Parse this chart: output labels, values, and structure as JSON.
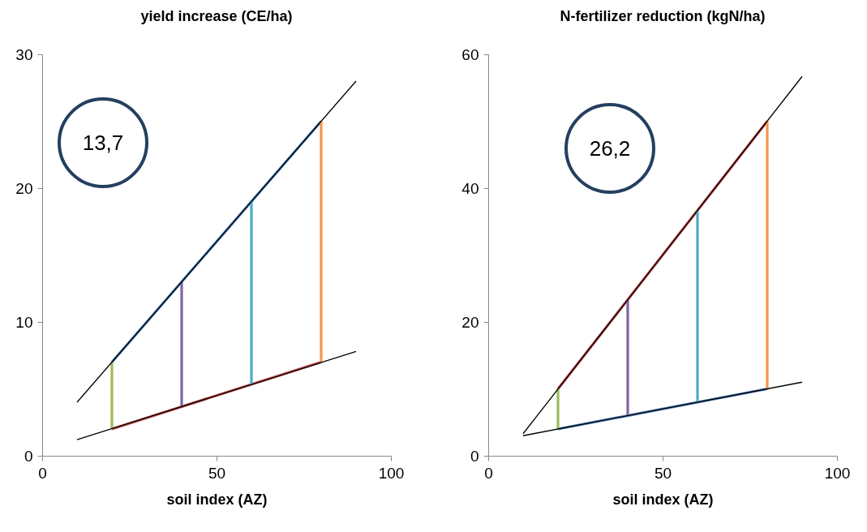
{
  "chart_data": [
    {
      "type": "line",
      "title": "yield increase (CE/ha)",
      "xlabel": "soil index (AZ)",
      "annotations": [
        "13,7"
      ],
      "xlim": [
        0,
        100
      ],
      "xticks": [
        0,
        50,
        100
      ],
      "ylim": [
        0,
        30
      ],
      "yticks": [
        0,
        10,
        20,
        30
      ],
      "grid": false,
      "series": [
        {
          "color": "#4f81bd",
          "x": [
            20,
            80
          ],
          "values": [
            7,
            25
          ]
        },
        {
          "color": "#c0504d",
          "x": [
            20,
            80
          ],
          "values": [
            2,
            7
          ]
        },
        {
          "color": "#9bbb59",
          "x": [
            20,
            20
          ],
          "values": [
            2,
            7
          ]
        },
        {
          "color": "#8064a2",
          "x": [
            40,
            40
          ],
          "values": [
            3.7,
            13
          ]
        },
        {
          "color": "#4bacc6",
          "x": [
            60,
            60
          ],
          "values": [
            5.3,
            19
          ]
        },
        {
          "color": "#f79646",
          "x": [
            80,
            80
          ],
          "values": [
            7,
            25
          ]
        },
        {
          "color": "#000000",
          "x": [
            10,
            90
          ],
          "values": [
            4,
            28
          ]
        },
        {
          "color": "#000000",
          "x": [
            10,
            90
          ],
          "values": [
            1.2,
            7.8
          ]
        }
      ]
    },
    {
      "type": "line",
      "title": "N-fertilizer reduction (kgN/ha)",
      "xlabel": "soil index (AZ)",
      "annotations": [
        "26,2"
      ],
      "xlim": [
        0,
        100
      ],
      "xticks": [
        0,
        50,
        100
      ],
      "ylim": [
        0,
        60
      ],
      "yticks": [
        0,
        20,
        40,
        60
      ],
      "grid": false,
      "series": [
        {
          "color": "#c0504d",
          "x": [
            20,
            80
          ],
          "values": [
            10,
            50
          ]
        },
        {
          "color": "#4f81bd",
          "x": [
            20,
            80
          ],
          "values": [
            4,
            10
          ]
        },
        {
          "color": "#9bbb59",
          "x": [
            20,
            20
          ],
          "values": [
            4,
            10
          ]
        },
        {
          "color": "#8064a2",
          "x": [
            40,
            40
          ],
          "values": [
            6,
            23.3
          ]
        },
        {
          "color": "#4bacc6",
          "x": [
            60,
            60
          ],
          "values": [
            8,
            36.7
          ]
        },
        {
          "color": "#f79646",
          "x": [
            80,
            80
          ],
          "values": [
            10,
            50
          ]
        },
        {
          "color": "#000000",
          "x": [
            10,
            90
          ],
          "values": [
            3.3,
            56.7
          ]
        },
        {
          "color": "#000000",
          "x": [
            10,
            90
          ],
          "values": [
            3,
            11
          ]
        }
      ]
    }
  ]
}
